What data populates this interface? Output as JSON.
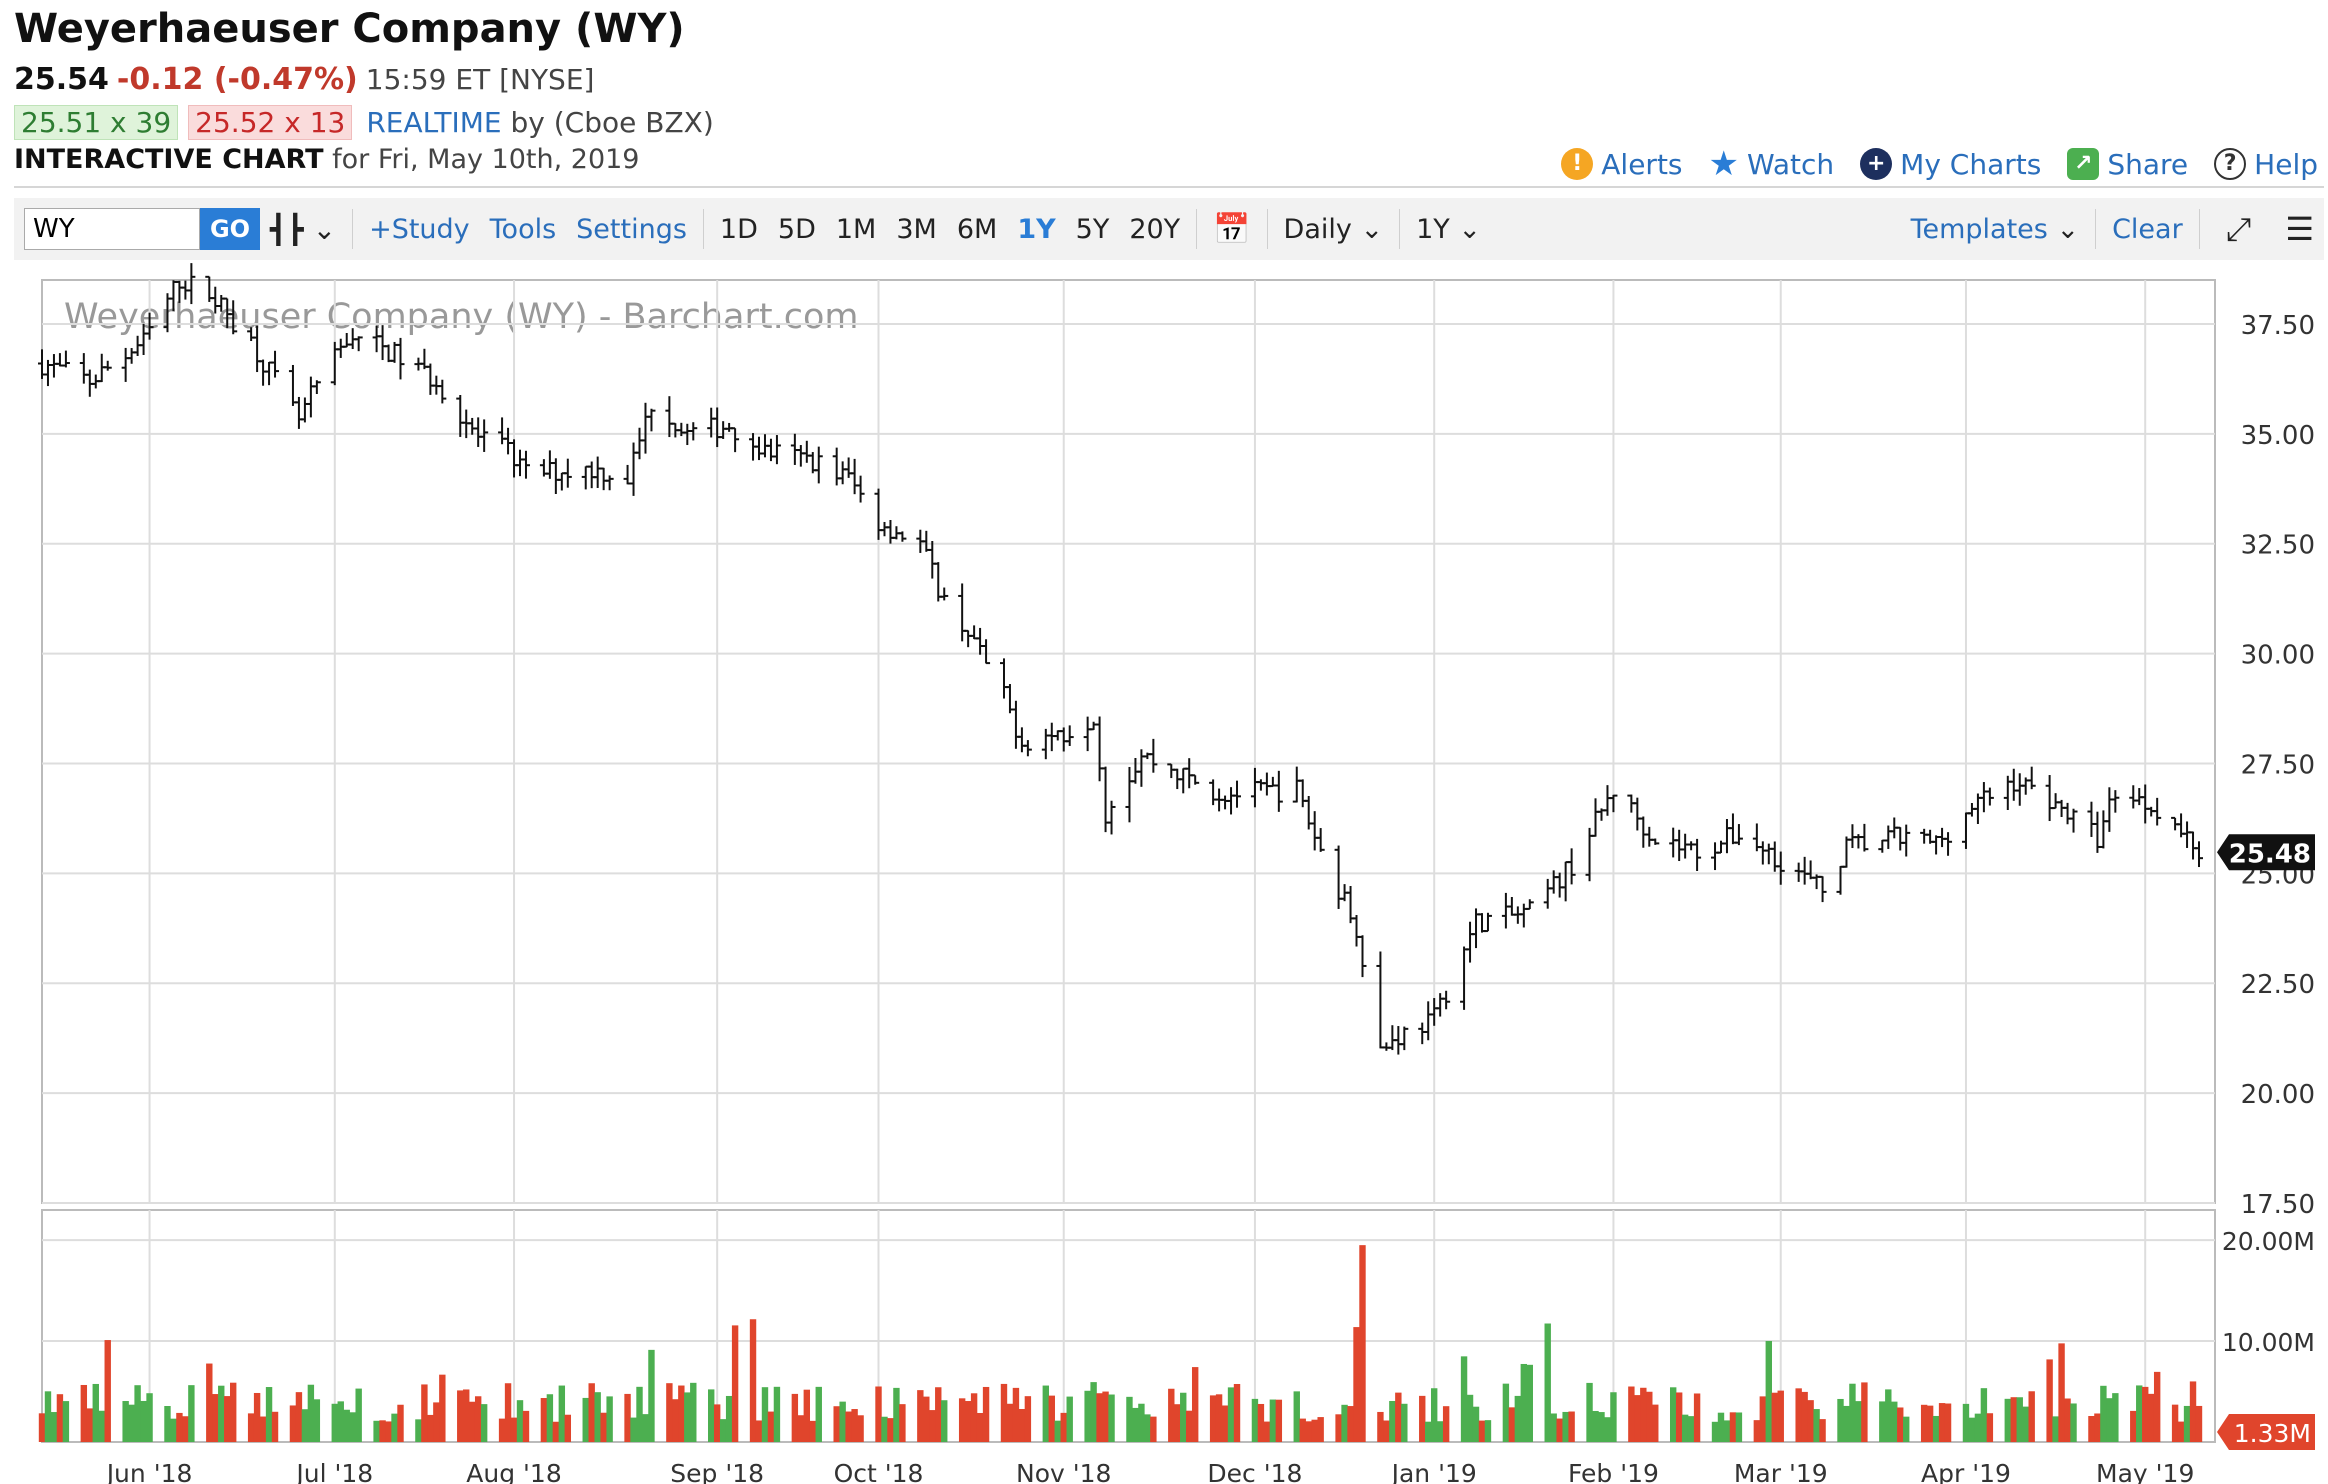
{
  "header": {
    "title": "Weyerhaeuser Company (WY)",
    "last": "25.54",
    "change": "-0.12 (-0.47%)",
    "time": "15:59 ET [NYSE]",
    "bid": "25.51 x 39",
    "ask": "25.52 x 13",
    "realtime": "REALTIME",
    "source": "by (Cboe BZX)",
    "interactive_label": "INTERACTIVE CHART",
    "date_label": "for Fri, May 10th, 2019"
  },
  "links": {
    "alerts": "Alerts",
    "watch": "Watch",
    "my_charts": "My Charts",
    "share": "Share",
    "help": "Help"
  },
  "toolbar": {
    "symbol": "WY",
    "go": "GO",
    "study": "+Study",
    "tools": "Tools",
    "settings": "Settings",
    "ranges": [
      "1D",
      "5D",
      "1M",
      "3M",
      "6M",
      "1Y",
      "5Y",
      "20Y"
    ],
    "selected_range": "1Y",
    "interval": "Daily",
    "period": "1Y",
    "templates": "Templates",
    "clear": "Clear"
  },
  "colors": {
    "up": "#4caf50",
    "down": "#e0452c",
    "accent": "#2a7dd6",
    "grid": "#dddddd"
  },
  "chart_data": {
    "type": "ohlc-bar",
    "title": "Weyerhaeuser Company (WY) - Barchart.com",
    "x_tick_labels": [
      "Jun '18",
      "Jul '18",
      "Aug '18",
      "Sep '18",
      "Oct '18",
      "Nov '18",
      "Dec '18",
      "Jan '19",
      "Feb '19",
      "Mar '19",
      "Apr '19",
      "May '19"
    ],
    "price_ticks": [
      "37.50",
      "35.00",
      "32.50",
      "30.00",
      "27.50",
      "25.00",
      "22.50",
      "20.00",
      "17.50"
    ],
    "price_range": [
      17.5,
      38.5
    ],
    "volume_ticks": [
      "20.00M",
      "10.00M"
    ],
    "volume_range_m": [
      0,
      21
    ],
    "last_price_label": "25.48",
    "last_volume_label": "1.33M",
    "price_anchors": [
      [
        "2018-05-14",
        36.6
      ],
      [
        "2018-05-22",
        36.2
      ],
      [
        "2018-05-31",
        37.1
      ],
      [
        "2018-06-06",
        38.5
      ],
      [
        "2018-06-11",
        38.2
      ],
      [
        "2018-06-18",
        37.1
      ],
      [
        "2018-06-26",
        35.3
      ],
      [
        "2018-06-29",
        36.1
      ],
      [
        "2018-07-05",
        37.3
      ],
      [
        "2018-07-12",
        36.8
      ],
      [
        "2018-07-19",
        36.2
      ],
      [
        "2018-07-26",
        34.9
      ],
      [
        "2018-07-31",
        34.6
      ],
      [
        "2018-08-03",
        34.1
      ],
      [
        "2018-08-14",
        34.2
      ],
      [
        "2018-08-20",
        34.0
      ],
      [
        "2018-08-24",
        35.7
      ],
      [
        "2018-08-30",
        35.0
      ],
      [
        "2018-09-06",
        35.2
      ],
      [
        "2018-09-12",
        34.6
      ],
      [
        "2018-09-20",
        34.4
      ],
      [
        "2018-09-26",
        34.0
      ],
      [
        "2018-10-01",
        33.0
      ],
      [
        "2018-10-08",
        32.5
      ],
      [
        "2018-10-12",
        31.2
      ],
      [
        "2018-10-16",
        30.5
      ],
      [
        "2018-10-22",
        29.0
      ],
      [
        "2018-10-25",
        28.0
      ],
      [
        "2018-11-01",
        28.2
      ],
      [
        "2018-11-06",
        28.6
      ],
      [
        "2018-11-08",
        26.4
      ],
      [
        "2018-11-14",
        27.7
      ],
      [
        "2018-11-27",
        26.8
      ],
      [
        "2018-12-10",
        26.9
      ],
      [
        "2018-12-14",
        25.5
      ],
      [
        "2018-12-20",
        23.8
      ],
      [
        "2018-12-24",
        21.0
      ],
      [
        "2018-12-27",
        21.3
      ],
      [
        "2019-01-02",
        21.7
      ],
      [
        "2019-01-09",
        23.9
      ],
      [
        "2019-01-18",
        24.1
      ],
      [
        "2019-01-25",
        25.2
      ],
      [
        "2019-02-01",
        26.9
      ],
      [
        "2019-02-08",
        25.8
      ],
      [
        "2019-02-15",
        25.5
      ],
      [
        "2019-02-22",
        25.9
      ],
      [
        "2019-03-01",
        25.3
      ],
      [
        "2019-03-08",
        24.6
      ],
      [
        "2019-03-12",
        25.6
      ],
      [
        "2019-03-20",
        25.8
      ],
      [
        "2019-03-27",
        25.7
      ],
      [
        "2019-04-02",
        26.5
      ],
      [
        "2019-04-09",
        27.1
      ],
      [
        "2019-04-15",
        26.7
      ],
      [
        "2019-04-23",
        25.8
      ],
      [
        "2019-04-26",
        26.9
      ],
      [
        "2019-05-03",
        26.5
      ],
      [
        "2019-05-10",
        25.5
      ]
    ],
    "volume_peak": {
      "date": "2018-12-21",
      "value_m": 19.5
    },
    "typical_volume_m": [
      2,
      6
    ]
  }
}
